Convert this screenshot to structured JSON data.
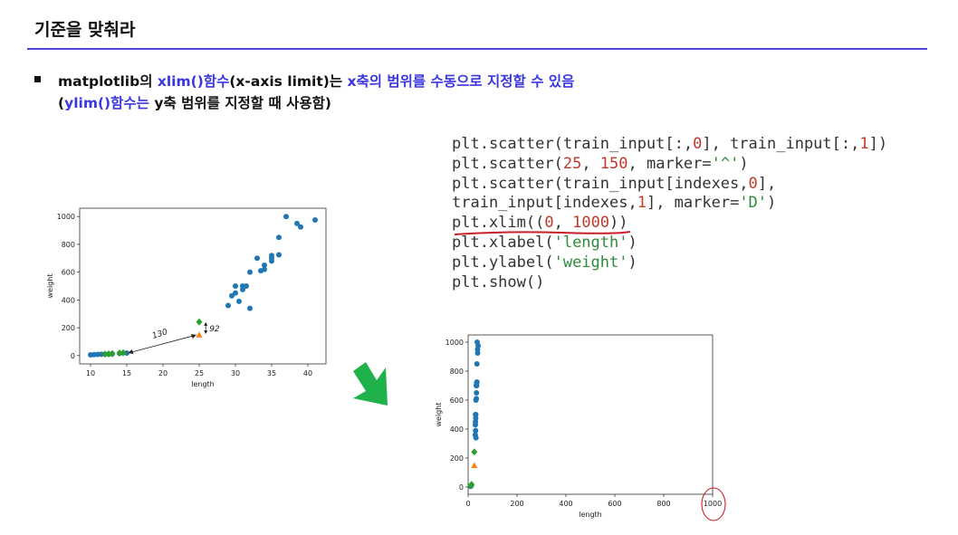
{
  "slide": {
    "title": "기준을 맞춰라",
    "line1": {
      "p1": "matplotlib의 ",
      "p2": "xlim()함수",
      "p3": "(x-axis limit)는 ",
      "p4": "x축의 범위를 수동으로 지정할 수 있음"
    },
    "line2": {
      "p1": "(",
      "p2": "ylim()함수는",
      "p3": " y축 범위를 지정할 때 사용함)"
    },
    "colors": {
      "accent": "#3a37e0",
      "rule": "#4a48d8",
      "green_arrow": "#1fb14a",
      "annotation_red": "#c8202a"
    }
  },
  "code": {
    "l1a": "plt.scatter(train_input[:,",
    "l1b": "0",
    "l1c": "], train_input[:,",
    "l1d": "1",
    "l1e": "])",
    "l2a": "plt.scatter(",
    "l2b": "25",
    "l2c": ", ",
    "l2d": "150",
    "l2e": ", marker=",
    "l2f": "'^'",
    "l2g": ")",
    "l3a": "plt.scatter(train_input[indexes,",
    "l3b": "0",
    "l3c": "],",
    "l4a": "train_input[indexes,",
    "l4b": "1",
    "l4c": "], marker=",
    "l4d": "'D'",
    "l4e": ")",
    "l5a": "plt.xlim((",
    "l5b": "0",
    "l5c": ", ",
    "l5d": "1000",
    "l5e": "))",
    "l6a": "plt.xlabel(",
    "l6b": "'length'",
    "l6c": ")",
    "l7a": "plt.ylabel(",
    "l7b": "'weight'",
    "l7c": ")",
    "l8": "plt.show()"
  },
  "annotations": {
    "horizontal_distance": "130",
    "vertical_distance": "92"
  },
  "chart_data": [
    {
      "type": "scatter",
      "xlabel": "length",
      "ylabel": "weight",
      "xlim": [
        8.5,
        42.5
      ],
      "ylim": [
        -60,
        1060
      ],
      "xticks": [
        "10",
        "15",
        "20",
        "25",
        "30",
        "35",
        "40"
      ],
      "yticks": [
        "0",
        "200",
        "400",
        "600",
        "800",
        "1000"
      ],
      "series": [
        {
          "marker": "circle",
          "color": "#1f77b4",
          "x": [
            10,
            10.5,
            11,
            11.5,
            12,
            12.5,
            13,
            14,
            15,
            29,
            29.5,
            30,
            30,
            30.5,
            31,
            31,
            31.5,
            32,
            32,
            33,
            33.5,
            34,
            34,
            35,
            35,
            35,
            36,
            36,
            37,
            38.5,
            39,
            41
          ],
          "y": [
            5,
            7,
            8,
            9,
            10,
            11,
            12,
            16,
            18,
            360,
            430,
            450,
            500,
            390,
            475,
            500,
            500,
            340,
            600,
            700,
            610,
            650,
            620,
            700,
            720,
            680,
            725,
            850,
            1000,
            950,
            925,
            975
          ]
        },
        {
          "marker": "triangle",
          "color": "#ff7f0e",
          "x": [
            25
          ],
          "y": [
            150
          ]
        },
        {
          "marker": "diamond",
          "color": "#2ca02c",
          "x": [
            12,
            12.5,
            13,
            14,
            14.5,
            25
          ],
          "y": [
            10,
            12,
            14,
            18,
            20,
            242
          ]
        }
      ]
    },
    {
      "type": "scatter",
      "xlabel": "length",
      "ylabel": "weight",
      "xlim": [
        0,
        1000
      ],
      "ylim": [
        -50,
        1050
      ],
      "xticks": [
        "0",
        "200",
        "400",
        "600",
        "800",
        "1000"
      ],
      "yticks": [
        "0",
        "200",
        "400",
        "600",
        "800",
        "1000"
      ],
      "series": [
        {
          "marker": "circle",
          "color": "#1f77b4",
          "x": [
            10,
            10.5,
            11,
            11.5,
            12,
            13,
            29,
            29.5,
            30,
            30,
            30.5,
            31,
            31.5,
            32,
            32,
            33,
            33.5,
            34,
            35,
            35,
            36,
            36,
            37,
            38.5,
            39,
            41
          ],
          "y": [
            5,
            7,
            8,
            9,
            10,
            12,
            360,
            430,
            450,
            500,
            390,
            475,
            500,
            340,
            600,
            700,
            610,
            650,
            700,
            720,
            725,
            850,
            1000,
            950,
            925,
            975
          ]
        },
        {
          "marker": "triangle",
          "color": "#ff7f0e",
          "x": [
            25
          ],
          "y": [
            150
          ]
        },
        {
          "marker": "diamond",
          "color": "#2ca02c",
          "x": [
            12,
            14,
            25
          ],
          "y": [
            10,
            18,
            242
          ]
        }
      ]
    }
  ]
}
